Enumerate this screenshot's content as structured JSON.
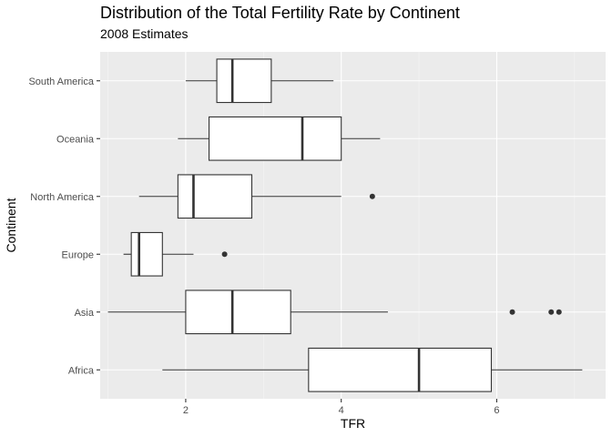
{
  "chart_data": {
    "type": "boxplot",
    "orientation": "horizontal",
    "title": "Distribution of the Total Fertility Rate by Continent",
    "subtitle": "2008 Estimates",
    "xlabel": "TFR",
    "ylabel": "Continent",
    "xlim": [
      0.9,
      7.4
    ],
    "x_ticks": [
      2,
      4,
      6
    ],
    "x_tick_labels": [
      "2",
      "4",
      "6"
    ],
    "grid": true,
    "legend": "none",
    "colors": {
      "panel": "#EBEBEB",
      "grid_major": "#FFFFFF",
      "grid_minor": "#F5F5F5",
      "box_fill": "#FFFFFF",
      "box_line": "#333333"
    },
    "categories": [
      "Africa",
      "Asia",
      "Europe",
      "North America",
      "Oceania",
      "South America"
    ],
    "boxes": [
      {
        "category": "Africa",
        "whisker_low": 1.7,
        "q1": 3.58,
        "median": 5.0,
        "q3": 5.93,
        "whisker_high": 7.1,
        "outliers": []
      },
      {
        "category": "Asia",
        "whisker_low": 1.0,
        "q1": 2.0,
        "median": 2.6,
        "q3": 3.35,
        "whisker_high": 4.6,
        "outliers": [
          6.2,
          6.7,
          6.8
        ]
      },
      {
        "category": "Europe",
        "whisker_low": 1.2,
        "q1": 1.3,
        "median": 1.4,
        "q3": 1.7,
        "whisker_high": 2.1,
        "outliers": [
          2.5
        ]
      },
      {
        "category": "North America",
        "whisker_low": 1.4,
        "q1": 1.9,
        "median": 2.1,
        "q3": 2.85,
        "whisker_high": 4.0,
        "outliers": [
          4.4
        ]
      },
      {
        "category": "Oceania",
        "whisker_low": 1.9,
        "q1": 2.3,
        "median": 3.5,
        "q3": 4.0,
        "whisker_high": 4.5,
        "outliers": []
      },
      {
        "category": "South America",
        "whisker_low": 2.0,
        "q1": 2.4,
        "median": 2.6,
        "q3": 3.1,
        "whisker_high": 3.9,
        "outliers": []
      }
    ]
  }
}
